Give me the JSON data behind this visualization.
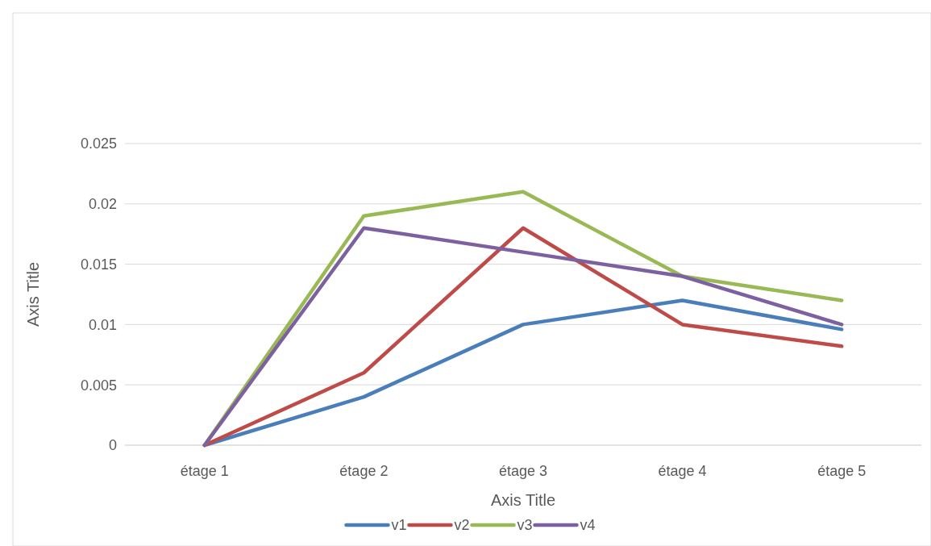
{
  "chart_data": {
    "type": "line",
    "xlabel": "Axis Title",
    "ylabel": "Axis Title",
    "categories": [
      "étage 1",
      "étage 2",
      "étage 3",
      "étage 4",
      "étage 5"
    ],
    "series": [
      {
        "name": "v1",
        "color": "#4a7ebb",
        "values": [
          0,
          0.004,
          0.01,
          0.012,
          0.0096
        ]
      },
      {
        "name": "v2",
        "color": "#be4b48",
        "values": [
          0,
          0.006,
          0.018,
          0.01,
          0.0082
        ]
      },
      {
        "name": "v3",
        "color": "#98b954",
        "values": [
          0,
          0.019,
          0.021,
          0.014,
          0.012
        ]
      },
      {
        "name": "v4",
        "color": "#7d60a0",
        "values": [
          0,
          0.018,
          0.016,
          0.014,
          0.01
        ]
      }
    ],
    "ylim": [
      0,
      0.025
    ],
    "yticks": [
      0,
      0.005,
      0.01,
      0.015,
      0.02,
      0.025
    ],
    "grid": "y",
    "legend": "bottom",
    "marker": "none",
    "line_style": "solid"
  }
}
